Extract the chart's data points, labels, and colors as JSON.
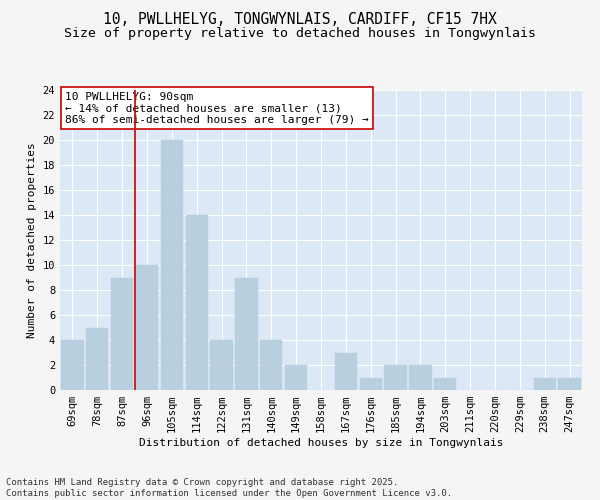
{
  "title1": "10, PWLLHELYG, TONGWYNLAIS, CARDIFF, CF15 7HX",
  "title2": "Size of property relative to detached houses in Tongwynlais",
  "xlabel": "Distribution of detached houses by size in Tongwynlais",
  "ylabel": "Number of detached properties",
  "categories": [
    "69sqm",
    "78sqm",
    "87sqm",
    "96sqm",
    "105sqm",
    "114sqm",
    "122sqm",
    "131sqm",
    "140sqm",
    "149sqm",
    "158sqm",
    "167sqm",
    "176sqm",
    "185sqm",
    "194sqm",
    "203sqm",
    "211sqm",
    "220sqm",
    "229sqm",
    "238sqm",
    "247sqm"
  ],
  "values": [
    4,
    5,
    9,
    10,
    20,
    14,
    4,
    9,
    4,
    2,
    0,
    3,
    1,
    2,
    2,
    1,
    0,
    0,
    0,
    1,
    1
  ],
  "bar_color": "#b8cfe0",
  "bar_edge_color": "#b8cfe0",
  "vline_color": "#cc0000",
  "annotation_text": "10 PWLLHELYG: 90sqm\n← 14% of detached houses are smaller (13)\n86% of semi-detached houses are larger (79) →",
  "ylim": [
    0,
    24
  ],
  "yticks": [
    0,
    2,
    4,
    6,
    8,
    10,
    12,
    14,
    16,
    18,
    20,
    22,
    24
  ],
  "bg_color": "#dce8f5",
  "grid_color": "#ffffff",
  "footer_text": "Contains HM Land Registry data © Crown copyright and database right 2025.\nContains public sector information licensed under the Open Government Licence v3.0.",
  "title_fontsize": 10.5,
  "subtitle_fontsize": 9.5,
  "axis_label_fontsize": 8,
  "tick_fontsize": 7.5,
  "annotation_fontsize": 8,
  "footer_fontsize": 6.5
}
